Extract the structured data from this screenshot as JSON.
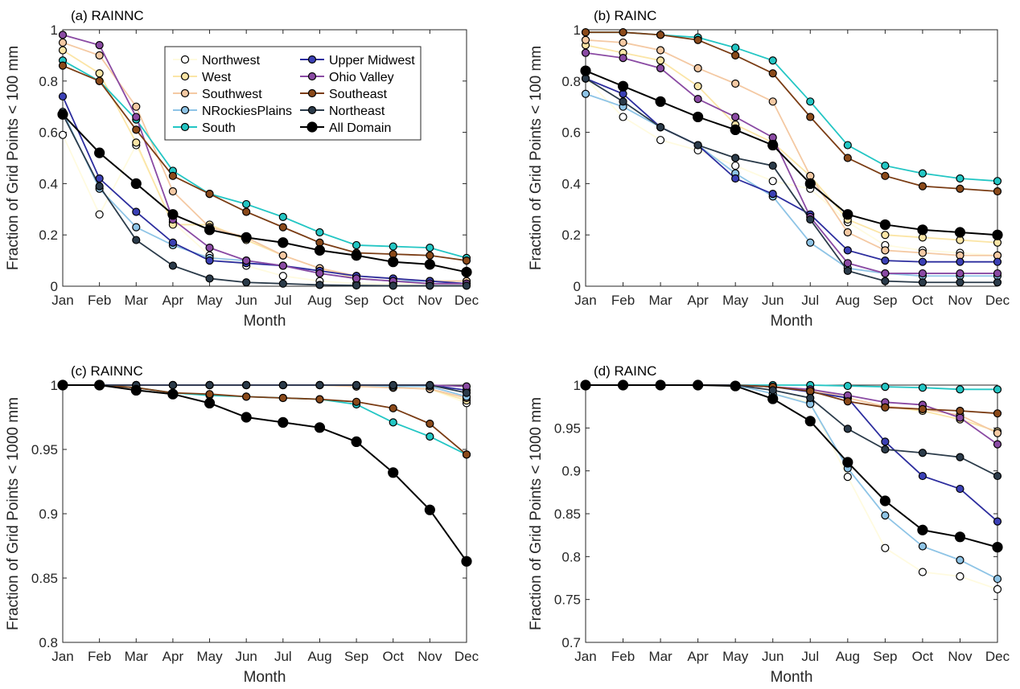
{
  "months": [
    "Jan",
    "Feb",
    "Mar",
    "Apr",
    "May",
    "Jun",
    "Jul",
    "Aug",
    "Sep",
    "Oct",
    "Nov",
    "Dec"
  ],
  "series_styles": [
    {
      "name": "Northwest",
      "line": "#fffbe0",
      "fill": "#ffffff"
    },
    {
      "name": "West",
      "line": "#fbe5a6",
      "fill": "#fbe5a6"
    },
    {
      "name": "Southwest",
      "line": "#f4c9a3",
      "fill": "#f4c9a3"
    },
    {
      "name": "NRockiesPlains",
      "line": "#8ec4e6",
      "fill": "#8ec4e6"
    },
    {
      "name": "South",
      "line": "#23c6c4",
      "fill": "#23c6c4"
    },
    {
      "name": "Upper Midwest",
      "line": "#2c2d9e",
      "fill": "#3b40b5"
    },
    {
      "name": "Ohio Valley",
      "line": "#8a4aa3",
      "fill": "#8a4aa3"
    },
    {
      "name": "Southeast",
      "line": "#7a3c14",
      "fill": "#8b4a1a"
    },
    {
      "name": "Northeast",
      "line": "#2b3b4a",
      "fill": "#2b3b4a"
    },
    {
      "name": "All Domain",
      "line": "#000000",
      "fill": "#000000"
    }
  ],
  "chart_data": [
    {
      "panel": "a",
      "type": "line",
      "title": "(a) RAINNC",
      "xlabel": "Month",
      "ylabel": "Fraction of Grid Points < 100 mm",
      "ylim": [
        0,
        1
      ],
      "yticks": [
        0,
        0.2,
        0.4,
        0.6,
        0.8,
        1
      ],
      "ytick_labels": [
        "0",
        "0.2",
        "0.4",
        "0.6",
        "0.8",
        "1"
      ],
      "legend": "top-right",
      "series": [
        {
          "name": "Northwest",
          "values": [
            0.59,
            0.28,
            0.55,
            0.25,
            0.12,
            0.08,
            0.04,
            0.02,
            0.01,
            0.01,
            0.01,
            0.01
          ]
        },
        {
          "name": "West",
          "values": [
            0.92,
            0.83,
            0.56,
            0.24,
            0.24,
            0.18,
            0.12,
            0.07,
            0.03,
            0.02,
            0.02,
            0.02
          ]
        },
        {
          "name": "Southwest",
          "values": [
            0.95,
            0.9,
            0.7,
            0.37,
            0.23,
            0.19,
            0.12,
            0.07,
            0.04,
            0.03,
            0.02,
            0.02
          ]
        },
        {
          "name": "NRockiesPlains",
          "values": [
            0.68,
            0.38,
            0.23,
            0.16,
            0.11,
            0.1,
            0.08,
            0.05,
            0.03,
            0.02,
            0.02,
            0.01
          ]
        },
        {
          "name": "South",
          "values": [
            0.88,
            0.8,
            0.65,
            0.45,
            0.36,
            0.32,
            0.27,
            0.21,
            0.16,
            0.155,
            0.15,
            0.11
          ]
        },
        {
          "name": "Upper Midwest",
          "values": [
            0.74,
            0.42,
            0.29,
            0.17,
            0.1,
            0.09,
            0.08,
            0.06,
            0.04,
            0.03,
            0.02,
            0.01
          ]
        },
        {
          "name": "Ohio Valley",
          "values": [
            0.98,
            0.94,
            0.66,
            0.26,
            0.15,
            0.1,
            0.08,
            0.05,
            0.03,
            0.02,
            0.01,
            0.01
          ]
        },
        {
          "name": "Southeast",
          "values": [
            0.86,
            0.8,
            0.61,
            0.43,
            0.36,
            0.29,
            0.23,
            0.17,
            0.13,
            0.125,
            0.12,
            0.1
          ]
        },
        {
          "name": "Northeast",
          "values": [
            0.67,
            0.39,
            0.18,
            0.08,
            0.03,
            0.015,
            0.01,
            0.005,
            0.003,
            0.002,
            0.002,
            0.002
          ]
        },
        {
          "name": "All Domain",
          "values": [
            0.67,
            0.52,
            0.4,
            0.28,
            0.22,
            0.19,
            0.17,
            0.14,
            0.12,
            0.095,
            0.085,
            0.055
          ]
        }
      ]
    },
    {
      "panel": "b",
      "type": "line",
      "title": "(b) RAINC",
      "xlabel": "Month",
      "ylabel": "Fraction of Grid Points < 100 mm",
      "ylim": [
        0,
        1
      ],
      "yticks": [
        0,
        0.2,
        0.4,
        0.6,
        0.8,
        1
      ],
      "ytick_labels": [
        "0",
        "0.2",
        "0.4",
        "0.6",
        "0.8",
        "1"
      ],
      "series": [
        {
          "name": "Northwest",
          "values": [
            0.81,
            0.66,
            0.57,
            0.53,
            0.47,
            0.41,
            0.38,
            0.25,
            0.16,
            0.14,
            0.13,
            0.12
          ]
        },
        {
          "name": "West",
          "values": [
            0.94,
            0.91,
            0.88,
            0.78,
            0.63,
            0.56,
            0.43,
            0.26,
            0.2,
            0.19,
            0.18,
            0.17
          ]
        },
        {
          "name": "Southwest",
          "values": [
            0.96,
            0.95,
            0.92,
            0.85,
            0.79,
            0.72,
            0.43,
            0.21,
            0.14,
            0.13,
            0.12,
            0.12
          ]
        },
        {
          "name": "NRockiesPlains",
          "values": [
            0.75,
            0.7,
            0.62,
            0.55,
            0.44,
            0.35,
            0.17,
            0.07,
            0.05,
            0.04,
            0.04,
            0.04
          ]
        },
        {
          "name": "South",
          "values": [
            0.99,
            0.99,
            0.98,
            0.97,
            0.93,
            0.88,
            0.72,
            0.55,
            0.47,
            0.44,
            0.42,
            0.41
          ]
        },
        {
          "name": "Upper Midwest",
          "values": [
            0.81,
            0.75,
            0.62,
            0.55,
            0.42,
            0.36,
            0.28,
            0.14,
            0.1,
            0.095,
            0.095,
            0.095
          ]
        },
        {
          "name": "Ohio Valley",
          "values": [
            0.91,
            0.89,
            0.85,
            0.73,
            0.66,
            0.58,
            0.27,
            0.09,
            0.05,
            0.05,
            0.05,
            0.05
          ]
        },
        {
          "name": "Southeast",
          "values": [
            0.99,
            0.99,
            0.98,
            0.96,
            0.9,
            0.83,
            0.66,
            0.5,
            0.43,
            0.39,
            0.38,
            0.37
          ]
        },
        {
          "name": "Northeast",
          "values": [
            0.81,
            0.72,
            0.62,
            0.55,
            0.5,
            0.47,
            0.26,
            0.06,
            0.02,
            0.015,
            0.015,
            0.015
          ]
        },
        {
          "name": "All Domain",
          "values": [
            0.84,
            0.78,
            0.72,
            0.66,
            0.61,
            0.55,
            0.4,
            0.28,
            0.24,
            0.22,
            0.21,
            0.2
          ]
        }
      ]
    },
    {
      "panel": "c",
      "type": "line",
      "title": "(c) RAINNC",
      "xlabel": "Month",
      "ylabel": "Fraction of Grid Points < 1000 mm",
      "ylim": [
        0.8,
        1
      ],
      "yticks": [
        0.8,
        0.85,
        0.9,
        0.95,
        1
      ],
      "ytick_labels": [
        "0.8",
        "0.85",
        "0.9",
        "0.95",
        "1"
      ],
      "series": [
        {
          "name": "Northwest",
          "values": [
            1,
            1,
            1,
            1,
            1,
            1,
            1,
            1,
            0.999,
            0.998,
            0.997,
            0.986
          ]
        },
        {
          "name": "West",
          "values": [
            1,
            1,
            1,
            1,
            1,
            1,
            1,
            1,
            0.999,
            0.998,
            0.997,
            0.988
          ]
        },
        {
          "name": "Southwest",
          "values": [
            1,
            1,
            1,
            1,
            1,
            1,
            1,
            1,
            0.999,
            0.998,
            0.997,
            0.99
          ]
        },
        {
          "name": "NRockiesPlains",
          "values": [
            1,
            1,
            1,
            1,
            1,
            1,
            1,
            1,
            1,
            0.999,
            0.999,
            0.991
          ]
        },
        {
          "name": "South",
          "values": [
            1,
            1,
            0.998,
            0.994,
            0.992,
            0.991,
            0.99,
            0.989,
            0.985,
            0.971,
            0.96,
            0.946
          ]
        },
        {
          "name": "Upper Midwest",
          "values": [
            1,
            1,
            1,
            1,
            1,
            1,
            1,
            1,
            1,
            1,
            1,
            0.996
          ]
        },
        {
          "name": "Ohio Valley",
          "values": [
            1,
            1,
            1,
            1,
            1,
            1,
            1,
            1,
            1,
            1,
            1,
            0.999
          ]
        },
        {
          "name": "Southeast",
          "values": [
            1,
            1,
            0.998,
            0.994,
            0.993,
            0.991,
            0.99,
            0.989,
            0.987,
            0.982,
            0.97,
            0.946
          ]
        },
        {
          "name": "Northeast",
          "values": [
            1,
            1,
            1,
            1,
            1,
            1,
            1,
            1,
            1,
            1,
            1,
            0.994
          ]
        },
        {
          "name": "All Domain",
          "values": [
            1,
            1,
            0.996,
            0.993,
            0.986,
            0.975,
            0.971,
            0.967,
            0.956,
            0.932,
            0.903,
            0.863
          ]
        }
      ]
    },
    {
      "panel": "d",
      "type": "line",
      "title": "(d) RAINC",
      "xlabel": "Month",
      "ylabel": "Fraction of Grid Points < 1000 mm",
      "ylim": [
        0.7,
        1
      ],
      "yticks": [
        0.7,
        0.75,
        0.8,
        0.85,
        0.9,
        0.95,
        1
      ],
      "ytick_labels": [
        "0.7",
        "0.75",
        "0.8",
        "0.85",
        "0.9",
        "0.95",
        "1"
      ],
      "series": [
        {
          "name": "Northwest",
          "values": [
            1,
            1,
            1,
            1,
            1,
            0.99,
            0.98,
            0.893,
            0.81,
            0.782,
            0.777,
            0.762
          ]
        },
        {
          "name": "West",
          "values": [
            1,
            1,
            1,
            1,
            1,
            0.998,
            0.995,
            0.985,
            0.975,
            0.97,
            0.96,
            0.946
          ]
        },
        {
          "name": "Southwest",
          "values": [
            1,
            1,
            1,
            1,
            1,
            0.998,
            0.995,
            0.985,
            0.975,
            0.972,
            0.965,
            0.944
          ]
        },
        {
          "name": "NRockiesPlains",
          "values": [
            1,
            1,
            1,
            1,
            1,
            0.99,
            0.978,
            0.903,
            0.848,
            0.812,
            0.796,
            0.774
          ]
        },
        {
          "name": "South",
          "values": [
            1,
            1,
            1,
            1,
            1,
            1,
            1,
            0.999,
            0.998,
            0.997,
            0.995,
            0.995
          ]
        },
        {
          "name": "Upper Midwest",
          "values": [
            1,
            1,
            1,
            1,
            1,
            0.998,
            0.992,
            0.985,
            0.934,
            0.894,
            0.879,
            0.841
          ]
        },
        {
          "name": "Ohio Valley",
          "values": [
            1,
            1,
            1,
            1,
            1,
            0.998,
            0.995,
            0.988,
            0.98,
            0.977,
            0.962,
            0.931
          ]
        },
        {
          "name": "Southeast",
          "values": [
            1,
            1,
            1,
            1,
            1,
            0.998,
            0.993,
            0.981,
            0.974,
            0.972,
            0.97,
            0.967
          ]
        },
        {
          "name": "Northeast",
          "values": [
            1,
            1,
            1,
            1,
            1,
            0.994,
            0.985,
            0.949,
            0.925,
            0.921,
            0.916,
            0.894
          ]
        },
        {
          "name": "All Domain",
          "values": [
            1,
            1,
            1,
            1,
            0.999,
            0.984,
            0.958,
            0.91,
            0.865,
            0.831,
            0.823,
            0.811
          ]
        }
      ]
    }
  ]
}
